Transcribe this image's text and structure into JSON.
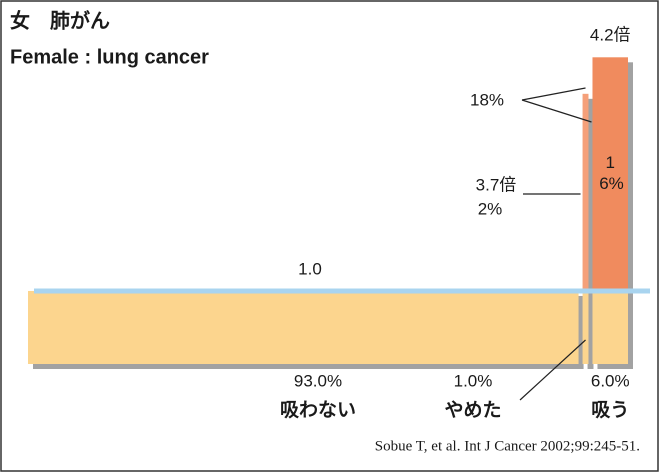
{
  "chart_data": {
    "type": "mekko",
    "title": "女　肺がん",
    "subtitle": "Female : lung cancer",
    "source": "Sobue T, et al. Int J Cancer 2002;99:245-51.",
    "categories": [
      "吸わない",
      "やめた",
      "吸う"
    ],
    "shares": [
      93.0,
      1.0,
      6.0
    ],
    "share_labels": [
      "93.0%",
      "1.0%",
      "6.0%"
    ],
    "values": [
      1.0,
      3.7,
      4.2
    ],
    "value_labels": [
      "1.0",
      "3.7倍",
      "4.2倍"
    ],
    "attributable": [
      null,
      2,
      16
    ],
    "attributable_labels": [
      null,
      "2%",
      "16%"
    ],
    "attributable_total": 18,
    "attributable_total_label": "18%",
    "ylim": [
      0,
      4.3
    ],
    "base_color": "#fcd58e",
    "colors": [
      "#fcd58e",
      "#f5a07a",
      "#f08b5e"
    ],
    "baseline_color": "#a9d4ef"
  }
}
